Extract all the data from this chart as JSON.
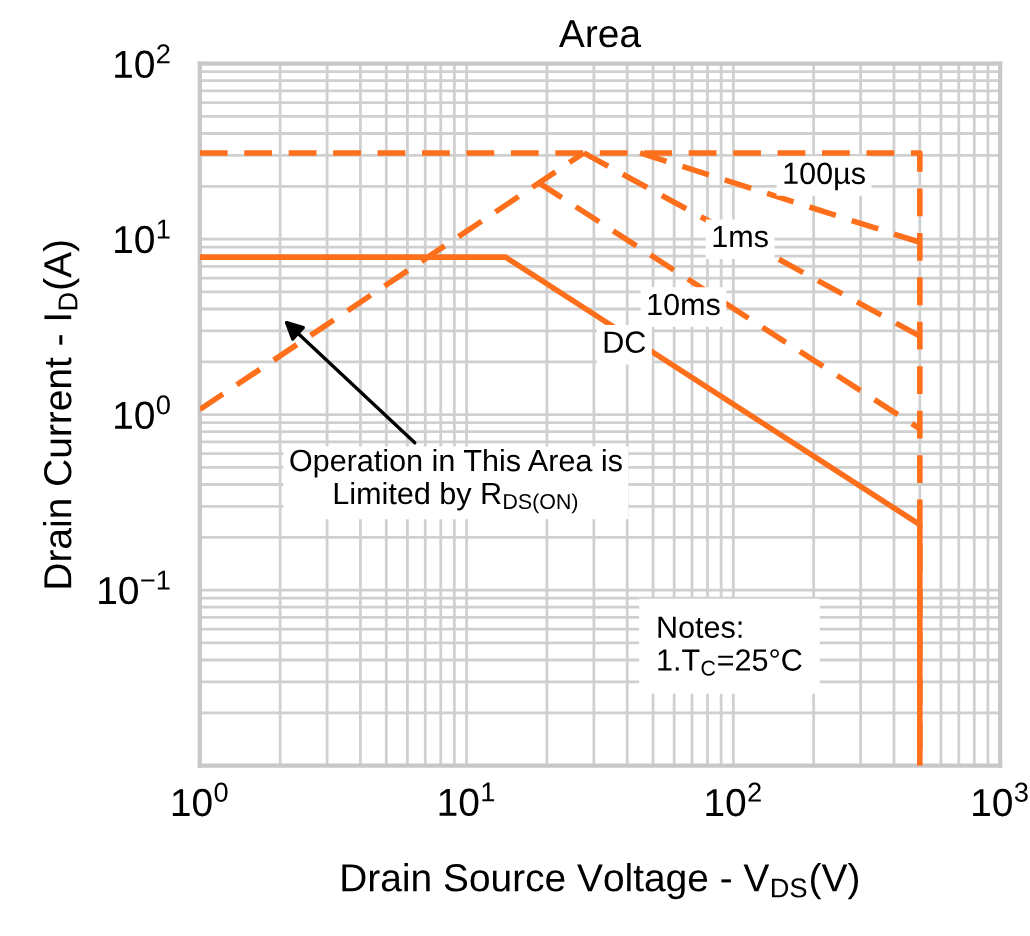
{
  "chart_data": {
    "type": "line",
    "title": "Area",
    "xlabel": "Drain Source Voltage - V$_{DS}$(V)",
    "ylabel": "Drain Current - I$_{D}$(A)",
    "log": "xy",
    "xlim": [
      1,
      1000
    ],
    "ylim": [
      0.01,
      100
    ],
    "xticks": [
      {
        "value": 1,
        "label": "10$^{0}$"
      },
      {
        "value": 10,
        "label": "10$^{1}$"
      },
      {
        "value": 100,
        "label": "10$^{2}$"
      },
      {
        "value": 1000,
        "label": "10$^{3}$"
      }
    ],
    "yticks": [
      {
        "value": 0.1,
        "label": "10$^{−1}$"
      },
      {
        "value": 1,
        "label": "10$^{0}$"
      },
      {
        "value": 10,
        "label": "10$^{1}$"
      },
      {
        "value": 100,
        "label": "10$^{2}$"
      }
    ],
    "grid": true,
    "legend": false,
    "marker": "none",
    "series": [
      {
        "color": "#fe6f1c",
        "line_style": "dashed",
        "x": [
          1,
          27.5
        ],
        "values": [
          1.07,
          31
        ]
      },
      {
        "color": "#fe6f1c",
        "line_style": "dashed",
        "x": [
          1,
          500,
          500
        ],
        "values": [
          31,
          31,
          0.01
        ]
      },
      {
        "color": "#fe6f1c",
        "line_style": "dashed",
        "x": [
          44.7,
          500
        ],
        "values": [
          31,
          9.6
        ]
      },
      {
        "color": "#fe6f1c",
        "line_style": "dashed",
        "x": [
          27.5,
          500
        ],
        "values": [
          31,
          2.8
        ]
      },
      {
        "color": "#fe6f1c",
        "line_style": "dashed",
        "x": [
          18.6,
          500
        ],
        "values": [
          21,
          0.83
        ]
      },
      {
        "color": "#fe6f1c",
        "line_style": "solid",
        "x": [
          1,
          14,
          500,
          500
        ],
        "values": [
          7.9,
          7.9,
          0.236,
          0.01
        ]
      }
    ],
    "annotations": [
      "100µs",
      {
        "text": "1ms",
        "x": 106,
        "y": 10
      },
      {
        "text": "10ms",
        "x": 65,
        "y": 4.1
      },
      {
        "text": "DC",
        "x": 39,
        "y": 2.5
      },
      "Operation in This Area is\nLimited by R$_{DS(ON)}$",
      "Notes:\n1.T$_{C}$=25°C"
    ]
  }
}
